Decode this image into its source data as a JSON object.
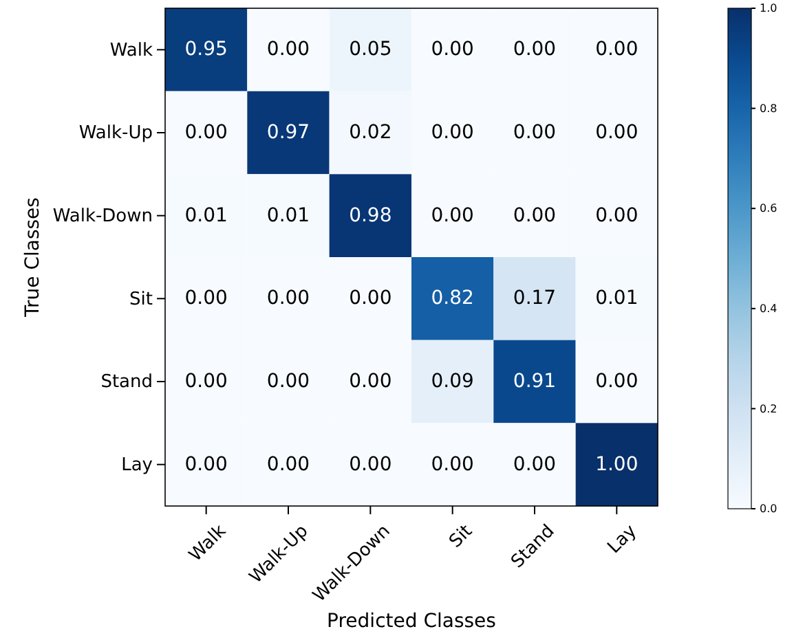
{
  "chart_data": {
    "type": "heatmap",
    "xlabel": "Predicted Classes",
    "ylabel": "True Classes",
    "categories": [
      "Walk",
      "Walk-Up",
      "Walk-Down",
      "Sit",
      "Stand",
      "Lay"
    ],
    "y_categories": [
      "Walk",
      "Walk-Up",
      "Walk-Down",
      "Sit",
      "Stand",
      "Lay"
    ],
    "cells": [
      [
        0.95,
        0.0,
        0.05,
        0.0,
        0.0,
        0.0
      ],
      [
        0.0,
        0.97,
        0.02,
        0.0,
        0.0,
        0.0
      ],
      [
        0.01,
        0.01,
        0.98,
        0.0,
        0.0,
        0.0
      ],
      [
        0.0,
        0.0,
        0.0,
        0.82,
        0.17,
        0.01
      ],
      [
        0.0,
        0.0,
        0.0,
        0.09,
        0.91,
        0.0
      ],
      [
        0.0,
        0.0,
        0.0,
        0.0,
        0.0,
        1.0
      ]
    ],
    "cell_labels": [
      [
        "0.95",
        "0.00",
        "0.05",
        "0.00",
        "0.00",
        "0.00"
      ],
      [
        "0.00",
        "0.97",
        "0.02",
        "0.00",
        "0.00",
        "0.00"
      ],
      [
        "0.01",
        "0.01",
        "0.98",
        "0.00",
        "0.00",
        "0.00"
      ],
      [
        "0.00",
        "0.00",
        "0.00",
        "0.82",
        "0.17",
        "0.01"
      ],
      [
        "0.00",
        "0.00",
        "0.00",
        "0.09",
        "0.91",
        "0.00"
      ],
      [
        "0.00",
        "0.00",
        "0.00",
        "0.00",
        "0.00",
        "1.00"
      ]
    ],
    "clim": [
      0,
      1
    ],
    "cticks": [
      {
        "value": 0,
        "label": "0.0"
      },
      {
        "value": 0.2,
        "label": "0.2"
      },
      {
        "value": 0.4,
        "label": "0.4"
      },
      {
        "value": 0.6,
        "label": "0.6"
      },
      {
        "value": 0.8,
        "label": "0.8"
      },
      {
        "value": 1,
        "label": "1.0"
      }
    ]
  }
}
